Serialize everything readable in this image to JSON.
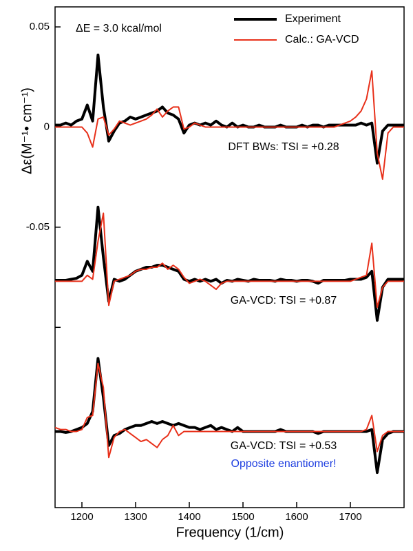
{
  "chart_data": {
    "type": "line",
    "annotation": "ΔE = 3.0 kcal/mol",
    "xlabel": "Frequency (1/cm)",
    "ylabel": "Δε(M⁻¹• cm⁻¹)",
    "xlim": [
      1150,
      1800
    ],
    "ylim": [
      -0.19,
      0.06
    ],
    "xticks": [
      1200,
      1300,
      1400,
      1500,
      1600,
      1700
    ],
    "yticks": [
      0.05,
      0,
      -0.05,
      {
        "value": -0.1,
        "label": null
      }
    ],
    "legend": [
      {
        "name": "Experiment",
        "color": "#000000",
        "width": 4
      },
      {
        "name": "Calc.: GA-VCD",
        "color": "#e8301a",
        "width": 2
      }
    ],
    "x": [
      1150,
      1160,
      1170,
      1180,
      1190,
      1200,
      1210,
      1220,
      1230,
      1240,
      1250,
      1260,
      1270,
      1280,
      1290,
      1300,
      1310,
      1320,
      1330,
      1340,
      1350,
      1360,
      1370,
      1380,
      1390,
      1400,
      1410,
      1420,
      1430,
      1440,
      1450,
      1460,
      1470,
      1480,
      1490,
      1500,
      1510,
      1520,
      1530,
      1540,
      1550,
      1560,
      1570,
      1580,
      1590,
      1600,
      1610,
      1620,
      1630,
      1640,
      1650,
      1660,
      1670,
      1680,
      1690,
      1700,
      1710,
      1720,
      1730,
      1740,
      1750,
      1760,
      1770,
      1780,
      1790,
      1800
    ],
    "panels": [
      {
        "label": "DFT BWs: TSI = +0.28",
        "series": [
          {
            "values": [
              0.001,
              0.001,
              0.002,
              0.001,
              0.003,
              0.004,
              0.011,
              0.003,
              0.036,
              0.01,
              -0.007,
              -0.002,
              0.002,
              0.003,
              0.005,
              0.004,
              0.005,
              0.006,
              0.007,
              0.008,
              0.01,
              0.007,
              0.006,
              0.004,
              -0.003,
              0.001,
              0.002,
              0.001,
              0.002,
              0.001,
              0.003,
              0.001,
              0,
              0.002,
              0,
              0.001,
              0,
              0,
              0.001,
              0,
              0,
              0,
              0.001,
              0,
              0,
              0,
              0.001,
              0,
              0.001,
              0.001,
              0,
              0.001,
              0.001,
              0.001,
              0.001,
              0.001,
              0.001,
              0.002,
              0.001,
              0.002,
              -0.018,
              -0.002,
              0.001,
              0.001,
              0.001,
              0.001
            ]
          },
          {
            "values": [
              0,
              0,
              0,
              0,
              0,
              0,
              -0.003,
              -0.01,
              0.004,
              0.005,
              -0.004,
              -0.001,
              0.003,
              0.002,
              0.001,
              0.002,
              0.003,
              0.004,
              0.006,
              0.009,
              0.005,
              0.008,
              0.01,
              0.01,
              -0.001,
              0,
              0.002,
              0.001,
              0,
              0,
              0,
              0,
              0,
              0,
              0,
              0,
              0,
              0,
              0,
              0,
              0,
              0,
              0,
              0,
              0,
              0,
              0,
              0,
              0,
              0,
              0,
              0,
              0,
              0.001,
              0.002,
              0.003,
              0.005,
              0.008,
              0.014,
              0.028,
              -0.013,
              -0.026,
              -0.003,
              0,
              0,
              0
            ]
          }
        ]
      },
      {
        "label": "GA-VCD: TSI = +0.87",
        "series": [
          {
            "values": [
              -0.0765,
              -0.0765,
              -0.0765,
              -0.076,
              -0.0755,
              -0.074,
              -0.067,
              -0.072,
              -0.04,
              -0.065,
              -0.087,
              -0.076,
              -0.077,
              -0.076,
              -0.074,
              -0.072,
              -0.071,
              -0.07,
              -0.07,
              -0.069,
              -0.069,
              -0.07,
              -0.071,
              -0.072,
              -0.076,
              -0.077,
              -0.076,
              -0.077,
              -0.076,
              -0.077,
              -0.076,
              -0.078,
              -0.0765,
              -0.077,
              -0.076,
              -0.0765,
              -0.077,
              -0.076,
              -0.0765,
              -0.0765,
              -0.0765,
              -0.077,
              -0.076,
              -0.0765,
              -0.0765,
              -0.077,
              -0.0765,
              -0.0765,
              -0.077,
              -0.078,
              -0.0765,
              -0.0765,
              -0.0765,
              -0.0765,
              -0.0765,
              -0.076,
              -0.076,
              -0.076,
              -0.075,
              -0.072,
              -0.0965,
              -0.08,
              -0.076,
              -0.076,
              -0.076,
              -0.076
            ]
          },
          {
            "values": [
              -0.077,
              -0.077,
              -0.077,
              -0.077,
              -0.077,
              -0.077,
              -0.074,
              -0.076,
              -0.057,
              -0.043,
              -0.089,
              -0.077,
              -0.076,
              -0.075,
              -0.074,
              -0.072,
              -0.071,
              -0.071,
              -0.07,
              -0.07,
              -0.068,
              -0.071,
              -0.069,
              -0.071,
              -0.075,
              -0.078,
              -0.077,
              -0.076,
              -0.077,
              -0.079,
              -0.081,
              -0.078,
              -0.077,
              -0.077,
              -0.077,
              -0.077,
              -0.077,
              -0.077,
              -0.077,
              -0.077,
              -0.077,
              -0.077,
              -0.077,
              -0.077,
              -0.077,
              -0.077,
              -0.077,
              -0.077,
              -0.077,
              -0.077,
              -0.077,
              -0.077,
              -0.077,
              -0.077,
              -0.077,
              -0.077,
              -0.076,
              -0.075,
              -0.074,
              -0.058,
              -0.09,
              -0.08,
              -0.077,
              -0.077,
              -0.077,
              -0.077
            ]
          }
        ]
      },
      {
        "label": "GA-VCD: TSI = +0.53",
        "note": "Opposite enantiomer!",
        "series": [
          {
            "values": [
              -0.152,
              -0.152,
              -0.1525,
              -0.152,
              -0.151,
              -0.15,
              -0.148,
              -0.142,
              -0.1155,
              -0.135,
              -0.159,
              -0.154,
              -0.153,
              -0.151,
              -0.15,
              -0.149,
              -0.149,
              -0.148,
              -0.147,
              -0.148,
              -0.147,
              -0.148,
              -0.149,
              -0.148,
              -0.149,
              -0.15,
              -0.15,
              -0.151,
              -0.15,
              -0.149,
              -0.151,
              -0.15,
              -0.151,
              -0.152,
              -0.15,
              -0.152,
              -0.152,
              -0.152,
              -0.152,
              -0.152,
              -0.152,
              -0.152,
              -0.151,
              -0.152,
              -0.152,
              -0.152,
              -0.152,
              -0.152,
              -0.152,
              -0.153,
              -0.152,
              -0.152,
              -0.152,
              -0.152,
              -0.152,
              -0.152,
              -0.152,
              -0.152,
              -0.152,
              -0.151,
              -0.1725,
              -0.156,
              -0.153,
              -0.152,
              -0.152,
              -0.152
            ]
          },
          {
            "values": [
              -0.15,
              -0.151,
              -0.151,
              -0.152,
              -0.152,
              -0.151,
              -0.145,
              -0.144,
              -0.118,
              -0.13,
              -0.165,
              -0.155,
              -0.152,
              -0.151,
              -0.153,
              -0.155,
              -0.157,
              -0.156,
              -0.158,
              -0.16,
              -0.156,
              -0.154,
              -0.149,
              -0.154,
              -0.152,
              -0.152,
              -0.152,
              -0.152,
              -0.152,
              -0.152,
              -0.152,
              -0.152,
              -0.152,
              -0.152,
              -0.152,
              -0.152,
              -0.152,
              -0.152,
              -0.152,
              -0.152,
              -0.152,
              -0.152,
              -0.152,
              -0.152,
              -0.152,
              -0.152,
              -0.152,
              -0.152,
              -0.152,
              -0.152,
              -0.152,
              -0.152,
              -0.152,
              -0.152,
              -0.152,
              -0.152,
              -0.152,
              -0.152,
              -0.151,
              -0.144,
              -0.162,
              -0.154,
              -0.152,
              -0.152,
              -0.152,
              -0.152
            ]
          }
        ]
      }
    ]
  }
}
